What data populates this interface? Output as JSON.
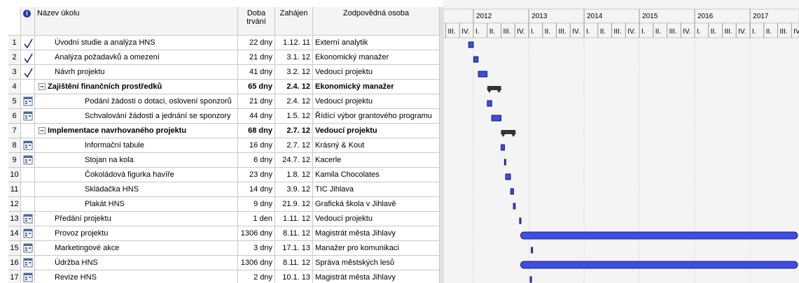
{
  "header": {
    "columns": [
      "Název úkolu",
      "Doba trvání",
      "Zahájen",
      "Zodpovědná osoba"
    ]
  },
  "timeline": {
    "years": [
      "2012",
      "2013",
      "2014",
      "2015",
      "2016",
      "2017"
    ],
    "quarters": [
      "I.",
      "II.",
      "III.",
      "IV."
    ]
  },
  "table": {
    "rows": [
      {
        "id": "1",
        "indicator": "done",
        "name": "Úvodní studie a analýza HNS",
        "duration": "22 dny",
        "start": "1.12. 11",
        "resource": "Externí analytik",
        "level": 1
      },
      {
        "id": "2",
        "indicator": "done",
        "name": "Analýza požadavků a omezení",
        "duration": "21 dny",
        "start": "3.1. 12",
        "resource": "Ekonomický manažer",
        "level": 1
      },
      {
        "id": "3",
        "indicator": "done",
        "name": "Návrh projektu",
        "duration": "41 dny",
        "start": "3.2. 12",
        "resource": "Vedoucí projektu",
        "level": 1
      },
      {
        "id": "4",
        "indicator": "none",
        "name": "Zajištění finančních prostředků",
        "duration": "65 dny",
        "start": "2.4. 12",
        "resource": "Ekonomický manažer",
        "level": 0,
        "summary": true
      },
      {
        "id": "5",
        "indicator": "calendar",
        "name": "Podání žádosti o dotaci, oslovení sponzorů",
        "duration": "21 dny",
        "start": "2.4. 12",
        "resource": "Vedoucí projektu",
        "level": 2
      },
      {
        "id": "6",
        "indicator": "calendar",
        "name": "Schvalování žádosti a jednání se sponzory",
        "duration": "44 dny",
        "start": "1.5. 12",
        "resource": "Řídící výbor grantového programu",
        "level": 2
      },
      {
        "id": "7",
        "indicator": "none",
        "name": "Implementace navrhovaného projektu",
        "duration": "68 dny",
        "start": "2.7. 12",
        "resource": "Vedoucí projektu",
        "level": 0,
        "summary": true
      },
      {
        "id": "8",
        "indicator": "calendar",
        "name": "Informační tabule",
        "duration": "16 dny",
        "start": "2.7. 12",
        "resource": "Krásný & Kout",
        "level": 2
      },
      {
        "id": "9",
        "indicator": "calendar",
        "name": "Stojan na kola",
        "duration": "6 dny",
        "start": "24.7. 12",
        "resource": "Kacerle",
        "level": 2
      },
      {
        "id": "10",
        "indicator": "none",
        "name": "Čokoládová figurka havíře",
        "duration": "23 dny",
        "start": "1.8. 12",
        "resource": "Kamila Chocolates",
        "level": 2
      },
      {
        "id": "11",
        "indicator": "none",
        "name": "Skládačka HNS",
        "duration": "14 dny",
        "start": "3.9. 12",
        "resource": "TIC Jihlava",
        "level": 2
      },
      {
        "id": "12",
        "indicator": "none",
        "name": "Plakát HNS",
        "duration": "9 dny",
        "start": "21.9. 12",
        "resource": "Grafická škola v Jihlavě",
        "level": 2
      },
      {
        "id": "13",
        "indicator": "calendar",
        "name": "Předání projektu",
        "duration": "1 den",
        "start": "1.11. 12",
        "resource": "Vedoucí projektu",
        "level": 1
      },
      {
        "id": "14",
        "indicator": "calendar",
        "name": "Provoz projektu",
        "duration": "1306 dny",
        "start": "8.11. 12",
        "resource": "Magistrát města Jihlavy",
        "level": 1
      },
      {
        "id": "15",
        "indicator": "calendar",
        "name": "Marketingové akce",
        "duration": "3 dny",
        "start": "17.1. 13",
        "resource": "Manažer pro komunikaci",
        "level": 1
      },
      {
        "id": "16",
        "indicator": "calendar",
        "name": "Údržba HNS",
        "duration": "1306 dny",
        "start": "8.11. 12",
        "resource": "Správa městských lesů",
        "level": 1
      },
      {
        "id": "17",
        "indicator": "calendar",
        "name": "Revize HNS",
        "duration": "2 dny",
        "start": "10.1. 13",
        "resource": "Magistrát města Jihlavy",
        "level": 1
      }
    ]
  }
}
